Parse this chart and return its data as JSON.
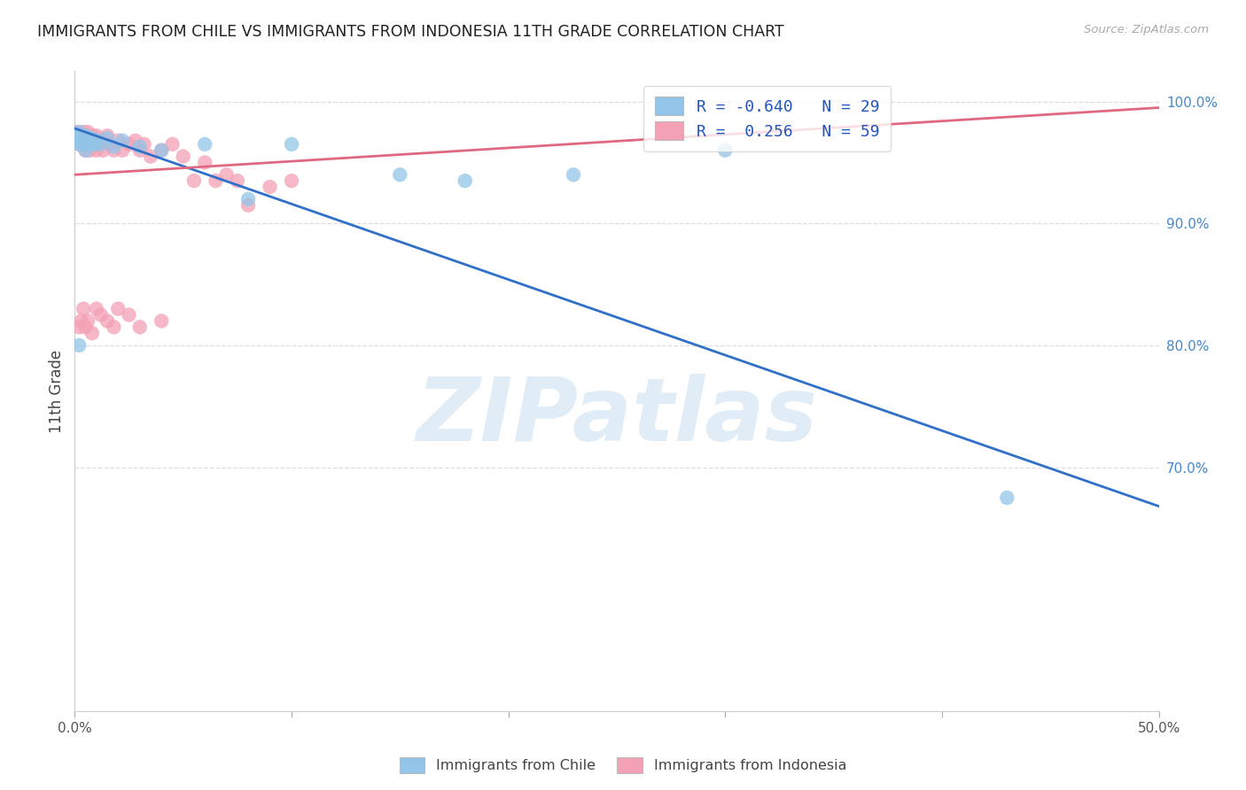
{
  "title": "IMMIGRANTS FROM CHILE VS IMMIGRANTS FROM INDONESIA 11TH GRADE CORRELATION CHART",
  "source": "Source: ZipAtlas.com",
  "ylabel": "11th Grade",
  "xlim": [
    0.0,
    0.5
  ],
  "ylim": [
    0.5,
    1.025
  ],
  "legend_chile_R": "-0.640",
  "legend_chile_N": "29",
  "legend_indonesia_R": "0.256",
  "legend_indonesia_N": "59",
  "chile_color": "#92C5E8",
  "indonesia_color": "#F4A0B5",
  "chile_line_color": "#3070C8",
  "indonesia_line_color": "#E06880",
  "watermark": "ZIPatlas",
  "chile_scatter_x": [
    0.0,
    0.001,
    0.001,
    0.002,
    0.002,
    0.003,
    0.004,
    0.005,
    0.005,
    0.006,
    0.007,
    0.008,
    0.009,
    0.01,
    0.012,
    0.015,
    0.018,
    0.022,
    0.03,
    0.04,
    0.06,
    0.08,
    0.1,
    0.15,
    0.18,
    0.23,
    0.3,
    0.43,
    0.002
  ],
  "chile_scatter_y": [
    0.97,
    0.968,
    0.972,
    0.965,
    0.975,
    0.968,
    0.965,
    0.972,
    0.96,
    0.968,
    0.965,
    0.97,
    0.965,
    0.968,
    0.965,
    0.97,
    0.963,
    0.968,
    0.963,
    0.96,
    0.965,
    0.92,
    0.965,
    0.94,
    0.935,
    0.94,
    0.96,
    0.675,
    0.8
  ],
  "indonesia_scatter_x": [
    0.0,
    0.001,
    0.001,
    0.002,
    0.002,
    0.003,
    0.003,
    0.004,
    0.004,
    0.005,
    0.005,
    0.005,
    0.006,
    0.006,
    0.007,
    0.007,
    0.008,
    0.008,
    0.009,
    0.01,
    0.01,
    0.011,
    0.012,
    0.013,
    0.015,
    0.016,
    0.018,
    0.02,
    0.022,
    0.025,
    0.028,
    0.03,
    0.032,
    0.035,
    0.04,
    0.045,
    0.05,
    0.055,
    0.06,
    0.065,
    0.07,
    0.075,
    0.08,
    0.09,
    0.1,
    0.01,
    0.02,
    0.003,
    0.004,
    0.002,
    0.006,
    0.008,
    0.012,
    0.015,
    0.018,
    0.025,
    0.03,
    0.04,
    0.005
  ],
  "indonesia_scatter_y": [
    0.972,
    0.968,
    0.975,
    0.965,
    0.97,
    0.968,
    0.972,
    0.965,
    0.975,
    0.968,
    0.96,
    0.972,
    0.965,
    0.975,
    0.968,
    0.96,
    0.972,
    0.965,
    0.968,
    0.972,
    0.96,
    0.965,
    0.968,
    0.96,
    0.972,
    0.965,
    0.96,
    0.968,
    0.96,
    0.965,
    0.968,
    0.96,
    0.965,
    0.955,
    0.96,
    0.965,
    0.955,
    0.935,
    0.95,
    0.935,
    0.94,
    0.935,
    0.915,
    0.93,
    0.935,
    0.83,
    0.83,
    0.82,
    0.83,
    0.815,
    0.82,
    0.81,
    0.825,
    0.82,
    0.815,
    0.825,
    0.815,
    0.82,
    0.815
  ],
  "chile_line_x": [
    0.0,
    0.5
  ],
  "chile_line_y": [
    0.978,
    0.668
  ],
  "indonesia_line_x": [
    0.0,
    0.5
  ],
  "indonesia_line_y": [
    0.94,
    0.995
  ],
  "ytick_positions": [
    1.0,
    0.9,
    0.8,
    0.7
  ],
  "ytick_labels": [
    "100.0%",
    "90.0%",
    "80.0%",
    "70.0%"
  ],
  "grid_color": "#DDDDDD",
  "background_color": "#FFFFFF",
  "spine_color": "#CCCCCC"
}
